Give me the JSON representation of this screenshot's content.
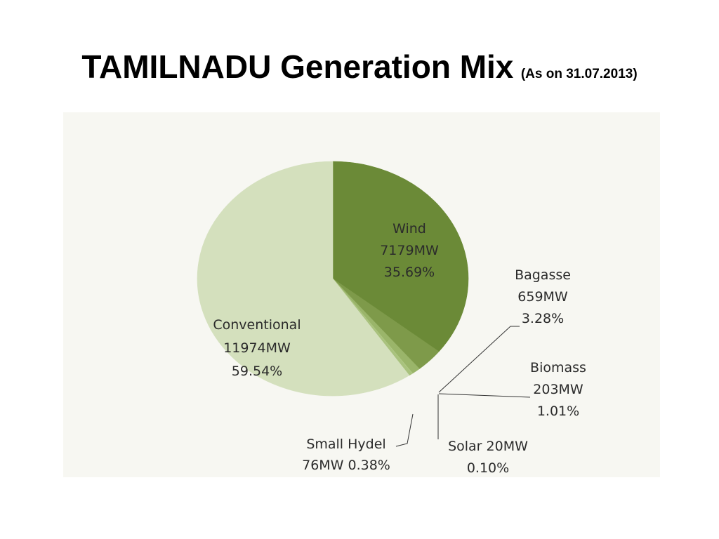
{
  "header": {
    "title": "TAMILNADU Generation Mix",
    "subtitle": "(As on 31.07.2013)"
  },
  "chart_data": {
    "type": "pie",
    "title": "TAMILNADU Generation Mix",
    "subtitle": "(As on 31.07.2013)",
    "legend": "none",
    "slices": [
      {
        "name": "Wind",
        "mw": 7179,
        "percent": 35.69,
        "color": "#6b8a37",
        "lines": [
          "Wind",
          "7179MW",
          "35.69%"
        ]
      },
      {
        "name": "Bagasse",
        "mw": 659,
        "percent": 3.28,
        "color": "#7e9a4a",
        "lines": [
          "Bagasse",
          "659MW",
          "3.28%"
        ]
      },
      {
        "name": "Biomass",
        "mw": 203,
        "percent": 1.01,
        "color": "#9ab56a",
        "lines": [
          "Biomass",
          "203MW",
          "1.01%"
        ]
      },
      {
        "name": "Solar",
        "mw": 20,
        "percent": 0.1,
        "color": "#b0c985",
        "lines": [
          "Solar  20MW",
          "0.10%"
        ]
      },
      {
        "name": "Small Hydel",
        "mw": 76,
        "percent": 0.38,
        "color": "#a9c27e",
        "lines": [
          "Small Hydel",
          "76MW 0.38%"
        ]
      },
      {
        "name": "Conventional",
        "mw": 11974,
        "percent": 59.54,
        "color": "#d4e0bd",
        "lines": [
          "Conventional",
          "11974MW",
          "59.54%"
        ]
      }
    ]
  }
}
